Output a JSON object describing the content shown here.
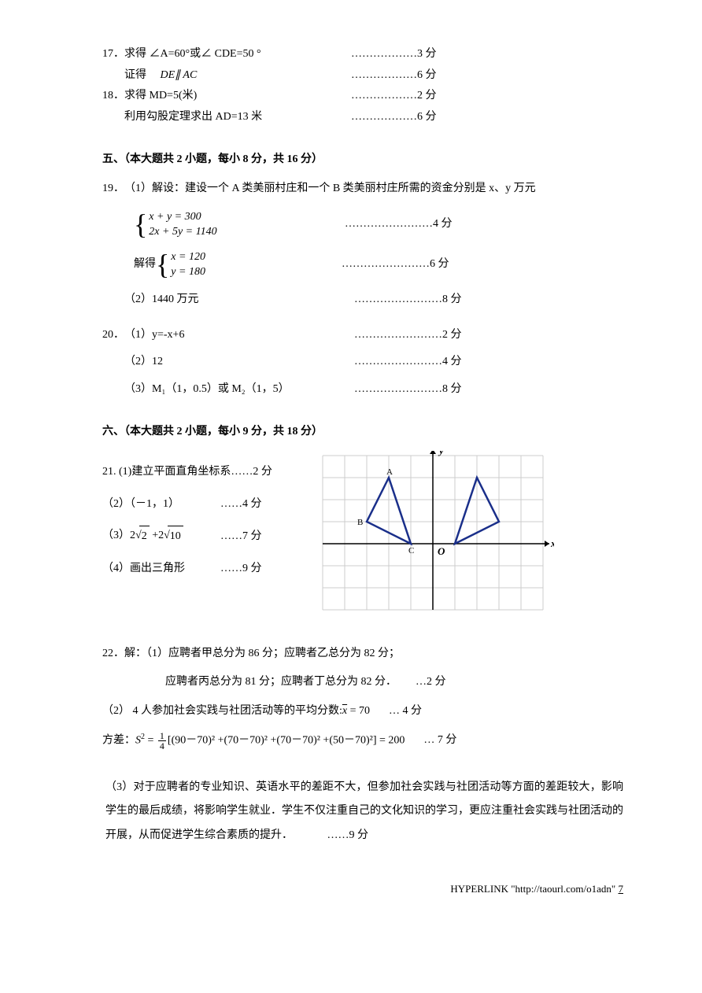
{
  "q17": {
    "num": "17．",
    "line1": "求得 ∠A=60°或∠ CDE=50 °",
    "score1": "………………3 分",
    "line2_indent": "证得",
    "line2_italic": "　DE∥ AC",
    "score2": "………………6 分"
  },
  "q18": {
    "num": "18．",
    "line1": "求得 MD=5(米)",
    "score1": "………………2 分",
    "line2": "利用勾股定理求出 AD=13 米",
    "score2": "………………6 分"
  },
  "section5": "五、（本大题共 2 小题，每小 8 分，共 16 分）",
  "q19": {
    "num": "19．",
    "intro": "（1）解设：建设一个 A 类美丽村庄和一个 B 类美丽村庄所需的资金分别是 x、y 万元",
    "eq1a": "x + y = 300",
    "eq1b": "2x + 5y = 1140",
    "score1": "……………………4 分",
    "solve_prefix": "解得",
    "eq2a": "x = 120",
    "eq2b": "y = 180",
    "score2": "……………………6 分",
    "part2": "（2）1440 万元",
    "score3": "……………………8 分"
  },
  "q20": {
    "num": "20．",
    "p1": "（1）y=-x+6",
    "s1": "……………………2 分",
    "p2": "（2）12",
    "s2": "……………………4 分",
    "p3": "（3）M₁（1，0.5）或 M₂（1，5）",
    "s3": "……………………8 分"
  },
  "section6": "六、（本大题共 2 小题，每小 9 分，共 18 分）",
  "q21": {
    "num": "21. ",
    "p1": "(1)建立平面直角坐标系 ",
    "s1": "……2 分",
    "p2": "（2）（－1，1）",
    "s2": "……4 分",
    "p3_pre": "（3）2",
    "p3_r1": "2",
    "p3_mid": " +2",
    "p3_r2": "10",
    "s3": "……7 分",
    "p4": "（4）画出三角形",
    "s4": "……9 分",
    "graph": {
      "axis_x_label": "x",
      "axis_y_label": "y",
      "origin_label": "O",
      "labels": {
        "A": "A",
        "B": "B",
        "C": "C"
      },
      "grid_color": "#cccccc",
      "axis_color": "#000000",
      "triangle_color": "#1a2f8a",
      "triangle_fill": "#eef2fa",
      "left_triangle": [
        [
          -2,
          3
        ],
        [
          -3,
          1
        ],
        [
          -1,
          0
        ]
      ],
      "right_triangle": [
        [
          2,
          3
        ],
        [
          1,
          0
        ],
        [
          3,
          1
        ]
      ],
      "cell_size": 28,
      "x_range": [
        -5,
        5
      ],
      "y_range": [
        -3,
        4
      ]
    }
  },
  "q22": {
    "num": "22．",
    "p1a": "解：（1）应聘者甲总分为 86 分；应聘者乙总分为 82 分；",
    "p1b": "应聘者丙总分为 81 分；应聘者丁总分为 82 分．",
    "s1": "…2 分",
    "p2": "（2） 4 人参加社会实践与社团活动等的平均分数:",
    "p2_xbar": "x",
    "p2_eq": " = 70",
    "s2": "… 4 分",
    "var_label": "方差：",
    "var_S": "S",
    "var_eq": " = ",
    "var_frac_n": "1",
    "var_frac_d": "4",
    "var_body": "[(90－70)² +(70－70)² +(70－70)² +(50－70)²] = 200",
    "s3": "… 7 分",
    "p3": "（3）对于应聘者的专业知识、英语水平的差距不大，但参加社会实践与社团活动等方面的差距较大，影响学生的最后成绩，将影响学生就业．学生不仅注重自己的文化知识的学习，更应注重社会实践与社团活动的开展，从而促进学生综合素质的提升．",
    "s4": "……9 分"
  },
  "footer": {
    "link": "HYPERLINK \"http://taourl.com/o1adn\" ",
    "page": "7"
  }
}
